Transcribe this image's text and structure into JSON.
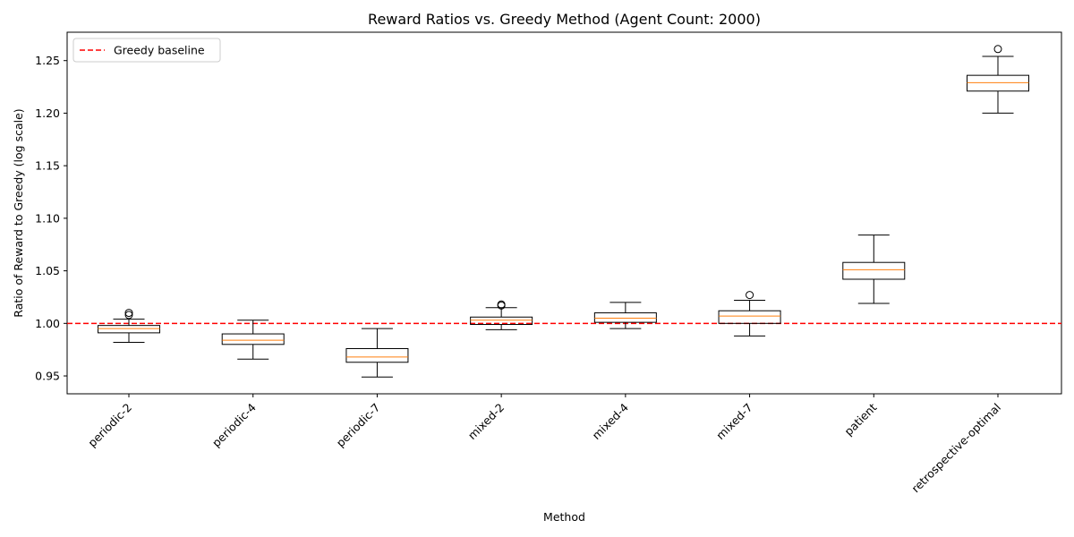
{
  "chart_data": {
    "type": "box",
    "title": "Reward Ratios vs. Greedy Method (Agent Count: 2000)",
    "xlabel": "Method",
    "ylabel": "Ratio of Reward to Greedy (log scale)",
    "ylim": [
      0.933,
      1.277
    ],
    "yticks": [
      0.95,
      1.0,
      1.05,
      1.1,
      1.15,
      1.2,
      1.25
    ],
    "ytick_labels": [
      "0.95",
      "1.00",
      "1.05",
      "1.10",
      "1.15",
      "1.20",
      "1.25"
    ],
    "grid": false,
    "legend": {
      "position": "top-left",
      "entries": [
        "Greedy baseline"
      ]
    },
    "baseline": {
      "label": "Greedy baseline",
      "value": 1.0,
      "color": "#ff0000",
      "style": "dashed"
    },
    "box_color": "#000000",
    "median_color": "#ff7f0e",
    "categories": [
      "periodic-2",
      "periodic-4",
      "periodic-7",
      "mixed-2",
      "mixed-4",
      "mixed-7",
      "patient",
      "retrospective-optimal"
    ],
    "boxes": [
      {
        "whisker_low": 0.982,
        "q1": 0.991,
        "median": 0.995,
        "q3": 0.998,
        "whisker_high": 1.004,
        "outliers": [
          1.008,
          1.01
        ]
      },
      {
        "whisker_low": 0.966,
        "q1": 0.98,
        "median": 0.984,
        "q3": 0.99,
        "whisker_high": 1.003,
        "outliers": []
      },
      {
        "whisker_low": 0.949,
        "q1": 0.963,
        "median": 0.968,
        "q3": 0.976,
        "whisker_high": 0.995,
        "outliers": []
      },
      {
        "whisker_low": 0.994,
        "q1": 0.999,
        "median": 1.003,
        "q3": 1.006,
        "whisker_high": 1.015,
        "outliers": [
          1.017,
          1.018
        ]
      },
      {
        "whisker_low": 0.995,
        "q1": 1.001,
        "median": 1.005,
        "q3": 1.01,
        "whisker_high": 1.02,
        "outliers": []
      },
      {
        "whisker_low": 0.988,
        "q1": 1.0,
        "median": 1.007,
        "q3": 1.012,
        "whisker_high": 1.022,
        "outliers": [
          1.027
        ]
      },
      {
        "whisker_low": 1.019,
        "q1": 1.042,
        "median": 1.051,
        "q3": 1.058,
        "whisker_high": 1.084,
        "outliers": []
      },
      {
        "whisker_low": 1.2,
        "q1": 1.221,
        "median": 1.229,
        "q3": 1.236,
        "whisker_high": 1.254,
        "outliers": [
          1.261
        ]
      }
    ]
  }
}
